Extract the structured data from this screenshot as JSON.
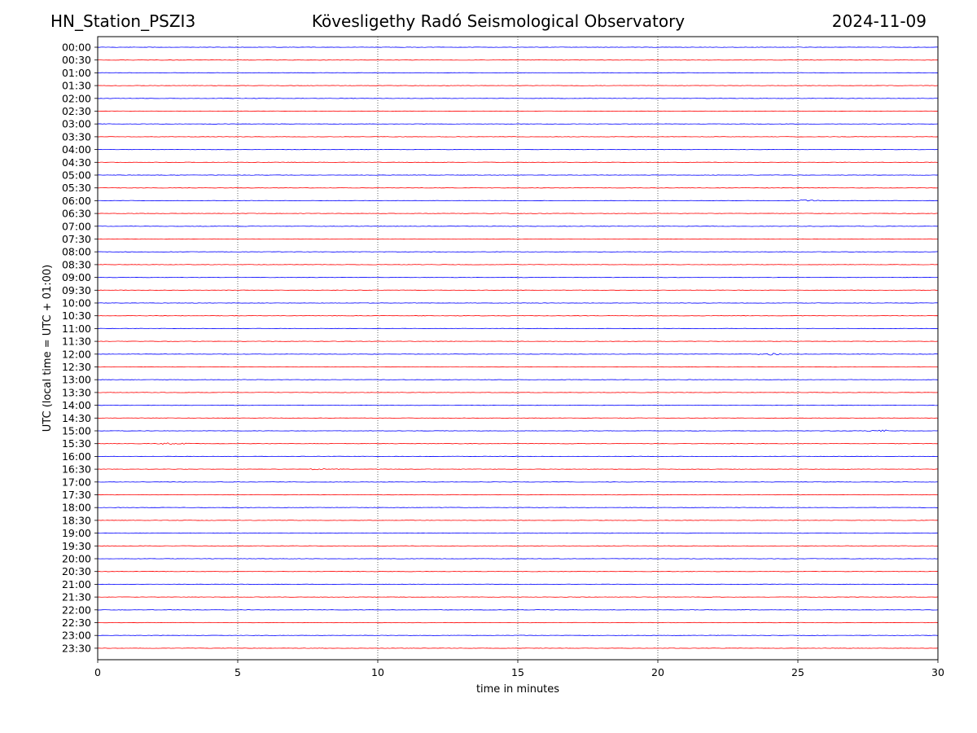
{
  "header": {
    "station": "HN_Station_PSZI3",
    "title": "Kövesligethy Radó Seismological Observatory",
    "date": "2024-11-09"
  },
  "chart_data": {
    "type": "line",
    "xlabel": "time in minutes",
    "ylabel": "UTC (local time = UTC + 01:00)",
    "xlim": [
      0,
      30
    ],
    "xticks": [
      0,
      5,
      10,
      15,
      20,
      25,
      30
    ],
    "grid": "vertical dotted",
    "trace_colors": [
      "#0000ff",
      "#ff0000"
    ],
    "rows": [
      "00:00",
      "00:30",
      "01:00",
      "01:30",
      "02:00",
      "02:30",
      "03:00",
      "03:30",
      "04:00",
      "04:30",
      "05:00",
      "05:30",
      "06:00",
      "06:30",
      "07:00",
      "07:30",
      "08:00",
      "08:30",
      "09:00",
      "09:30",
      "10:00",
      "10:30",
      "11:00",
      "11:30",
      "12:00",
      "12:30",
      "13:00",
      "13:30",
      "14:00",
      "14:30",
      "15:00",
      "15:30",
      "16:00",
      "16:30",
      "17:00",
      "17:30",
      "18:00",
      "18:30",
      "19:00",
      "19:30",
      "20:00",
      "20:30",
      "21:00",
      "21:30",
      "22:00",
      "22:30",
      "23:00",
      "23:30"
    ],
    "events": [
      {
        "row": "06:00",
        "minute": 25.3
      },
      {
        "row": "12:00",
        "minute": 24.0
      },
      {
        "row": "15:00",
        "minute": 27.9
      },
      {
        "row": "15:30",
        "minute": 2.7
      },
      {
        "row": "16:30",
        "minute": 8.1
      }
    ]
  }
}
